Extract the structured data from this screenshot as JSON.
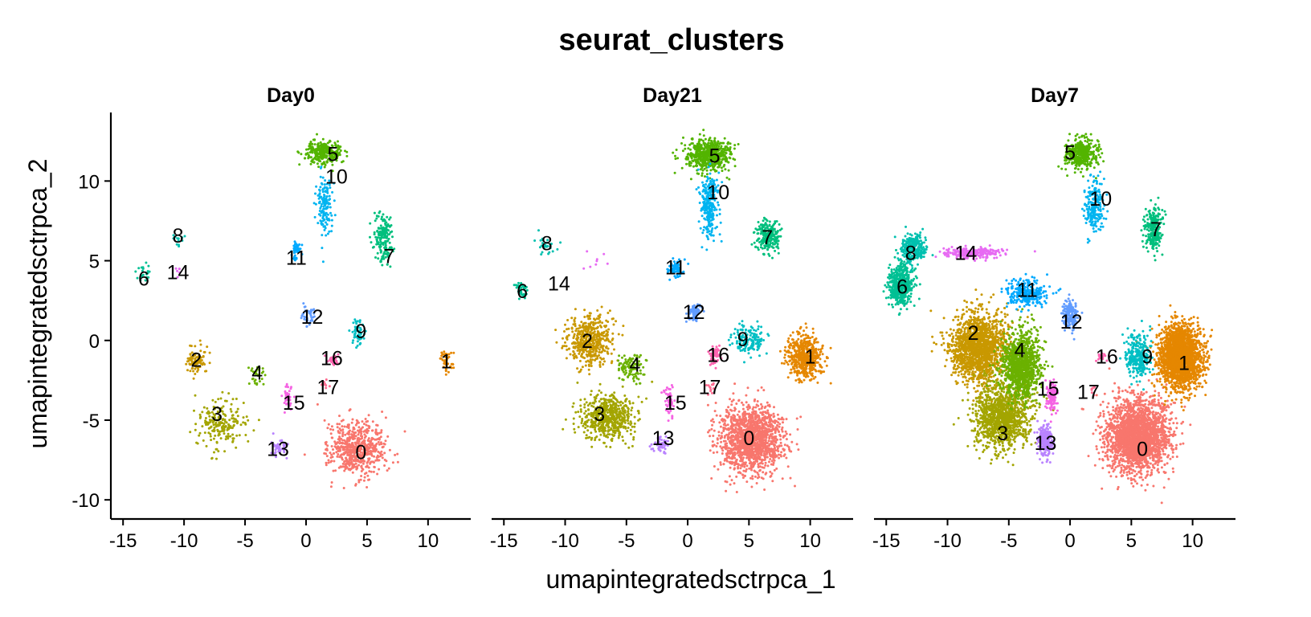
{
  "chart_data": {
    "type": "scatter",
    "title": "seurat_clusters",
    "xlabel": "umapintegratedsctrpca_1",
    "ylabel": "umapintegratedsctrpca_2",
    "xlim": [
      -16,
      13.5
    ],
    "ylim": [
      -11.2,
      14.3
    ],
    "x_ticks": [
      -15,
      -10,
      -5,
      0,
      5,
      10
    ],
    "x_tick_labels": [
      "-15",
      "-10",
      "-5",
      "0",
      "5",
      "10"
    ],
    "y_ticks": [
      -10,
      -5,
      0,
      5,
      10
    ],
    "y_tick_labels": [
      "-10",
      "-5",
      "0",
      "5",
      "10"
    ],
    "grid": false,
    "legend": "none",
    "cluster_colors": {
      "0": "#F8766D",
      "1": "#E58700",
      "2": "#C99800",
      "3": "#A3A500",
      "4": "#6BB100",
      "5": "#00BA38",
      "6": "#00BF7D",
      "7": "#00C0AF",
      "8": "#00BCD8",
      "9": "#00B0F6",
      "10": "#619CFF",
      "11": "#B983FF",
      "12": "#E76BF3",
      "13": "#FD61D1",
      "14": "#FF67A4",
      "15": "#F8766D",
      "16": "#E58700",
      "17": "#C99800"
    },
    "panels": [
      {
        "name": "Day0",
        "clusters": [
          {
            "label": "0",
            "color": "#F8766D",
            "x": 4.2,
            "y": -6.8,
            "sx": 2.0,
            "sy": 1.6,
            "n": 620
          },
          {
            "label": "1",
            "color": "#E58700",
            "x": 11.5,
            "y": -1.3,
            "sx": 0.5,
            "sy": 0.7,
            "n": 40
          },
          {
            "label": "2",
            "color": "#C99800",
            "x": -9.0,
            "y": -1.2,
            "sx": 0.9,
            "sy": 0.9,
            "n": 90
          },
          {
            "label": "3",
            "color": "#A3A500",
            "x": -7.0,
            "y": -5.2,
            "sx": 1.7,
            "sy": 1.4,
            "n": 210
          },
          {
            "label": "4",
            "color": "#6BB100",
            "x": -4.0,
            "y": -2.2,
            "sx": 0.5,
            "sy": 0.6,
            "n": 30
          },
          {
            "label": "5",
            "color": "#53B400",
            "x": 1.5,
            "y": 11.8,
            "sx": 1.4,
            "sy": 0.7,
            "n": 300
          },
          {
            "label": "6",
            "color": "#00C094",
            "x": -13.3,
            "y": 4.2,
            "sx": 0.6,
            "sy": 0.5,
            "n": 20
          },
          {
            "label": "7",
            "color": "#00BF7D",
            "x": 6.3,
            "y": 6.5,
            "sx": 0.7,
            "sy": 1.3,
            "n": 170
          },
          {
            "label": "8",
            "color": "#00C0AF",
            "x": -10.5,
            "y": 6.3,
            "sx": 0.5,
            "sy": 0.4,
            "n": 12
          },
          {
            "label": "9",
            "color": "#00BFC4",
            "x": 4.3,
            "y": 0.5,
            "sx": 0.6,
            "sy": 0.9,
            "n": 60
          },
          {
            "label": "10",
            "color": "#00B4F0",
            "x": 1.5,
            "y": 8.5,
            "sx": 0.6,
            "sy": 1.8,
            "n": 140
          },
          {
            "label": "11",
            "color": "#00A9FF",
            "x": -0.8,
            "y": 5.6,
            "sx": 0.4,
            "sy": 0.6,
            "n": 40
          },
          {
            "label": "12",
            "color": "#619CFF",
            "x": 0.2,
            "y": 1.6,
            "sx": 0.5,
            "sy": 0.5,
            "n": 40
          },
          {
            "label": "13",
            "color": "#B983FF",
            "x": -2.3,
            "y": -6.7,
            "sx": 0.6,
            "sy": 0.5,
            "n": 40
          },
          {
            "label": "14",
            "color": "#E76BF3",
            "x": -10.5,
            "y": 4.3,
            "sx": 0.3,
            "sy": 0.4,
            "n": 6
          },
          {
            "label": "15",
            "color": "#F564E3",
            "x": -1.5,
            "y": -3.4,
            "sx": 0.3,
            "sy": 1.0,
            "n": 40
          },
          {
            "label": "16",
            "color": "#FF64B0",
            "x": 2.2,
            "y": -1.2,
            "sx": 0.4,
            "sy": 0.3,
            "n": 30
          },
          {
            "label": "17",
            "color": "#FF6C91",
            "x": 1.5,
            "y": -2.8,
            "sx": 0.3,
            "sy": 0.3,
            "n": 10
          }
        ],
        "labels": [
          {
            "text": "0",
            "x": 4.5,
            "y": -7.0
          },
          {
            "text": "1",
            "x": 11.5,
            "y": -1.3
          },
          {
            "text": "2",
            "x": -9.0,
            "y": -1.2
          },
          {
            "text": "3",
            "x": -7.3,
            "y": -4.6
          },
          {
            "text": "4",
            "x": -4.0,
            "y": -2.0
          },
          {
            "text": "5",
            "x": 2.2,
            "y": 11.7
          },
          {
            "text": "6",
            "x": -13.3,
            "y": 3.9
          },
          {
            "text": "7",
            "x": 6.8,
            "y": 5.3
          },
          {
            "text": "8",
            "x": -10.5,
            "y": 6.6
          },
          {
            "text": "9",
            "x": 4.5,
            "y": 0.6
          },
          {
            "text": "10",
            "x": 2.5,
            "y": 10.3
          },
          {
            "text": "11",
            "x": -0.8,
            "y": 5.2
          },
          {
            "text": "12",
            "x": 0.5,
            "y": 1.5
          },
          {
            "text": "13",
            "x": -2.3,
            "y": -6.8
          },
          {
            "text": "14",
            "x": -10.5,
            "y": 4.3
          },
          {
            "text": "15",
            "x": -1.0,
            "y": -3.9
          },
          {
            "text": "16",
            "x": 2.1,
            "y": -1.1
          },
          {
            "text": "17",
            "x": 1.8,
            "y": -2.9
          }
        ]
      },
      {
        "name": "Day21",
        "clusters": [
          {
            "label": "0",
            "color": "#F8766D",
            "x": 5.2,
            "y": -6.2,
            "sx": 2.4,
            "sy": 1.9,
            "n": 1400
          },
          {
            "label": "1",
            "color": "#E58700",
            "x": 9.5,
            "y": -1.0,
            "sx": 1.3,
            "sy": 1.3,
            "n": 520
          },
          {
            "label": "2",
            "color": "#C99800",
            "x": -8.0,
            "y": 0.0,
            "sx": 1.7,
            "sy": 1.4,
            "n": 480
          },
          {
            "label": "3",
            "color": "#A3A500",
            "x": -6.5,
            "y": -4.8,
            "sx": 2.0,
            "sy": 1.3,
            "n": 560
          },
          {
            "label": "4",
            "color": "#6BB100",
            "x": -4.5,
            "y": -1.6,
            "sx": 1.0,
            "sy": 0.9,
            "n": 110
          },
          {
            "label": "5",
            "color": "#53B400",
            "x": 1.7,
            "y": 11.6,
            "sx": 1.6,
            "sy": 0.9,
            "n": 560
          },
          {
            "label": "6",
            "color": "#00C094",
            "x": -13.5,
            "y": 3.2,
            "sx": 0.6,
            "sy": 0.5,
            "n": 35
          },
          {
            "label": "7",
            "color": "#00BF7D",
            "x": 6.5,
            "y": 6.5,
            "sx": 0.9,
            "sy": 0.9,
            "n": 220
          },
          {
            "label": "8",
            "color": "#00C0AF",
            "x": -11.5,
            "y": 6.0,
            "sx": 0.9,
            "sy": 0.6,
            "n": 25
          },
          {
            "label": "9",
            "color": "#00BFC4",
            "x": 5.0,
            "y": 0.0,
            "sx": 1.2,
            "sy": 0.9,
            "n": 150
          },
          {
            "label": "10",
            "color": "#00B4F0",
            "x": 1.8,
            "y": 8.5,
            "sx": 0.7,
            "sy": 1.9,
            "n": 260
          },
          {
            "label": "11",
            "color": "#00A9FF",
            "x": -1.0,
            "y": 4.5,
            "sx": 0.6,
            "sy": 0.6,
            "n": 60
          },
          {
            "label": "12",
            "color": "#619CFF",
            "x": 0.5,
            "y": 1.8,
            "sx": 0.6,
            "sy": 0.5,
            "n": 80
          },
          {
            "label": "13",
            "color": "#B983FF",
            "x": -2.2,
            "y": -6.5,
            "sx": 0.6,
            "sy": 0.5,
            "n": 50
          },
          {
            "label": "14",
            "color": "#E76BF3",
            "x": -7.0,
            "y": 5.0,
            "sx": 1.3,
            "sy": 0.6,
            "n": 8
          },
          {
            "label": "15",
            "color": "#F564E3",
            "x": -1.5,
            "y": -3.7,
            "sx": 0.4,
            "sy": 0.9,
            "n": 50
          },
          {
            "label": "16",
            "color": "#FF64B0",
            "x": 2.2,
            "y": -1.0,
            "sx": 0.4,
            "sy": 0.5,
            "n": 70
          },
          {
            "label": "17",
            "color": "#FF6C91",
            "x": 1.8,
            "y": -3.0,
            "sx": 0.4,
            "sy": 0.4,
            "n": 12
          }
        ],
        "labels": [
          {
            "text": "0",
            "x": 5.0,
            "y": -6.1
          },
          {
            "text": "1",
            "x": 10.0,
            "y": -1.0
          },
          {
            "text": "2",
            "x": -8.2,
            "y": 0.0
          },
          {
            "text": "3",
            "x": -7.2,
            "y": -4.6
          },
          {
            "text": "4",
            "x": -4.3,
            "y": -1.5
          },
          {
            "text": "5",
            "x": 2.2,
            "y": 11.6
          },
          {
            "text": "6",
            "x": -13.5,
            "y": 3.1
          },
          {
            "text": "7",
            "x": 6.5,
            "y": 6.5
          },
          {
            "text": "8",
            "x": -11.5,
            "y": 6.1
          },
          {
            "text": "9",
            "x": 4.5,
            "y": 0.1
          },
          {
            "text": "10",
            "x": 2.5,
            "y": 9.3
          },
          {
            "text": "11",
            "x": -1.0,
            "y": 4.6
          },
          {
            "text": "12",
            "x": 0.5,
            "y": 1.8
          },
          {
            "text": "13",
            "x": -2.0,
            "y": -6.1
          },
          {
            "text": "14",
            "x": -10.5,
            "y": 3.6
          },
          {
            "text": "15",
            "x": -1.0,
            "y": -3.9
          },
          {
            "text": "16",
            "x": 2.5,
            "y": -0.9
          },
          {
            "text": "17",
            "x": 1.8,
            "y": -2.9
          }
        ]
      },
      {
        "name": "Day7",
        "clusters": [
          {
            "label": "0",
            "color": "#F8766D",
            "x": 5.5,
            "y": -6.0,
            "sx": 2.3,
            "sy": 2.0,
            "n": 2400
          },
          {
            "label": "1",
            "color": "#E58700",
            "x": 9.0,
            "y": -1.0,
            "sx": 1.6,
            "sy": 1.8,
            "n": 2000
          },
          {
            "label": "2",
            "color": "#C99800",
            "x": -7.5,
            "y": -0.5,
            "sx": 2.0,
            "sy": 2.0,
            "n": 1600
          },
          {
            "label": "3",
            "color": "#A3A500",
            "x": -5.5,
            "y": -4.8,
            "sx": 2.0,
            "sy": 1.8,
            "n": 1200
          },
          {
            "label": "4",
            "color": "#6BB100",
            "x": -4.0,
            "y": -1.5,
            "sx": 1.4,
            "sy": 1.8,
            "n": 1100
          },
          {
            "label": "5",
            "color": "#53B400",
            "x": 1.0,
            "y": 11.7,
            "sx": 1.3,
            "sy": 0.8,
            "n": 360
          },
          {
            "label": "6",
            "color": "#00C094",
            "x": -13.8,
            "y": 3.5,
            "sx": 0.9,
            "sy": 1.2,
            "n": 500
          },
          {
            "label": "7",
            "color": "#00BF7D",
            "x": 6.8,
            "y": 7.0,
            "sx": 0.6,
            "sy": 1.2,
            "n": 240
          },
          {
            "label": "8",
            "color": "#00C0AF",
            "x": -12.8,
            "y": 5.8,
            "sx": 1.0,
            "sy": 0.8,
            "n": 260
          },
          {
            "label": "9",
            "color": "#00BFC4",
            "x": 5.5,
            "y": -1.0,
            "sx": 1.0,
            "sy": 1.3,
            "n": 280
          },
          {
            "label": "10",
            "color": "#00B4F0",
            "x": 2.0,
            "y": 8.5,
            "sx": 0.7,
            "sy": 1.5,
            "n": 200
          },
          {
            "label": "11",
            "color": "#00A9FF",
            "x": -3.5,
            "y": 3.0,
            "sx": 1.4,
            "sy": 0.8,
            "n": 280
          },
          {
            "label": "12",
            "color": "#619CFF",
            "x": 0.0,
            "y": 1.5,
            "sx": 0.5,
            "sy": 0.9,
            "n": 170
          },
          {
            "label": "13",
            "color": "#B983FF",
            "x": -2.0,
            "y": -6.3,
            "sx": 0.5,
            "sy": 0.8,
            "n": 260
          },
          {
            "label": "14",
            "color": "#E76BF3",
            "x": -8.0,
            "y": 5.5,
            "sx": 2.0,
            "sy": 0.3,
            "n": 260
          },
          {
            "label": "15",
            "color": "#F564E3",
            "x": -1.5,
            "y": -3.5,
            "sx": 0.4,
            "sy": 0.9,
            "n": 120
          },
          {
            "label": "16",
            "color": "#FF64B0",
            "x": 2.5,
            "y": -1.0,
            "sx": 0.5,
            "sy": 0.3,
            "n": 20
          },
          {
            "label": "17",
            "color": "#FF6C91",
            "x": 1.8,
            "y": -3.0,
            "sx": 0.3,
            "sy": 0.3,
            "n": 8
          }
        ],
        "labels": [
          {
            "text": "0",
            "x": 5.9,
            "y": -6.8
          },
          {
            "text": "1",
            "x": 9.3,
            "y": -1.4
          },
          {
            "text": "2",
            "x": -7.9,
            "y": 0.5
          },
          {
            "text": "3",
            "x": -5.5,
            "y": -5.8
          },
          {
            "text": "4",
            "x": -4.1,
            "y": -0.6
          },
          {
            "text": "5",
            "x": 0.0,
            "y": 11.8
          },
          {
            "text": "6",
            "x": -13.7,
            "y": 3.4
          },
          {
            "text": "7",
            "x": 7.0,
            "y": 7.0
          },
          {
            "text": "8",
            "x": -13.0,
            "y": 5.5
          },
          {
            "text": "9",
            "x": 6.3,
            "y": -1.0
          },
          {
            "text": "10",
            "x": 2.5,
            "y": 8.9
          },
          {
            "text": "11",
            "x": -3.5,
            "y": 3.2
          },
          {
            "text": "12",
            "x": 0.1,
            "y": 1.2
          },
          {
            "text": "13",
            "x": -2.0,
            "y": -6.4
          },
          {
            "text": "14",
            "x": -8.5,
            "y": 5.5
          },
          {
            "text": "15",
            "x": -1.8,
            "y": -3.0
          },
          {
            "text": "16",
            "x": 3.0,
            "y": -1.0
          },
          {
            "text": "17",
            "x": 1.5,
            "y": -3.2
          }
        ]
      }
    ]
  }
}
